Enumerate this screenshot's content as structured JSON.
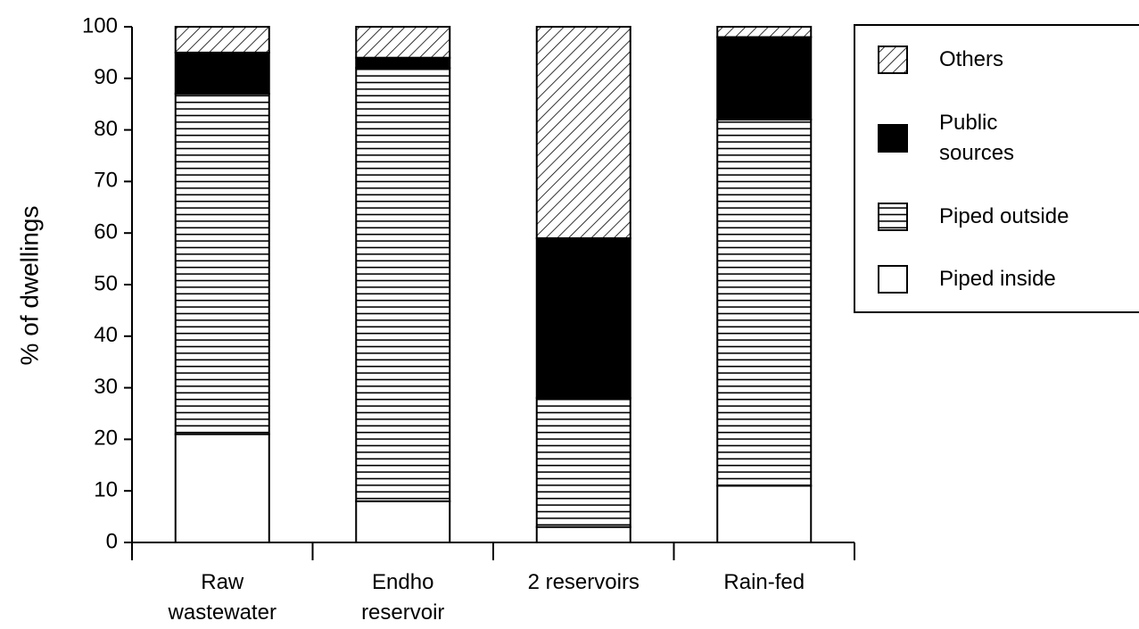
{
  "chart_data": {
    "type": "stacked_bar",
    "y_label": "% of dwellings",
    "categories": [
      "Raw\nwastewater",
      "Endho\nreservoir",
      "2 reservoirs",
      "Rain-fed"
    ],
    "series": [
      {
        "name": "Piped inside",
        "color": "#ffffff",
        "pattern": "none",
        "values": [
          21,
          8,
          3,
          11
        ]
      },
      {
        "name": "Piped outside",
        "color": "#ffffff",
        "pattern": "horizontal",
        "values": [
          66,
          84,
          25,
          71
        ]
      },
      {
        "name": "Public\nsources",
        "color": "#000000",
        "pattern": "solid",
        "values": [
          8,
          2,
          31,
          16
        ]
      },
      {
        "name": "Others",
        "color": "#ffffff",
        "pattern": "diagonal",
        "values": [
          5,
          6,
          41,
          2
        ]
      }
    ],
    "ylim": [
      0,
      100
    ],
    "yticks": [
      0,
      10,
      20,
      30,
      40,
      50,
      60,
      70,
      80,
      90,
      100
    ],
    "legend": "right"
  }
}
